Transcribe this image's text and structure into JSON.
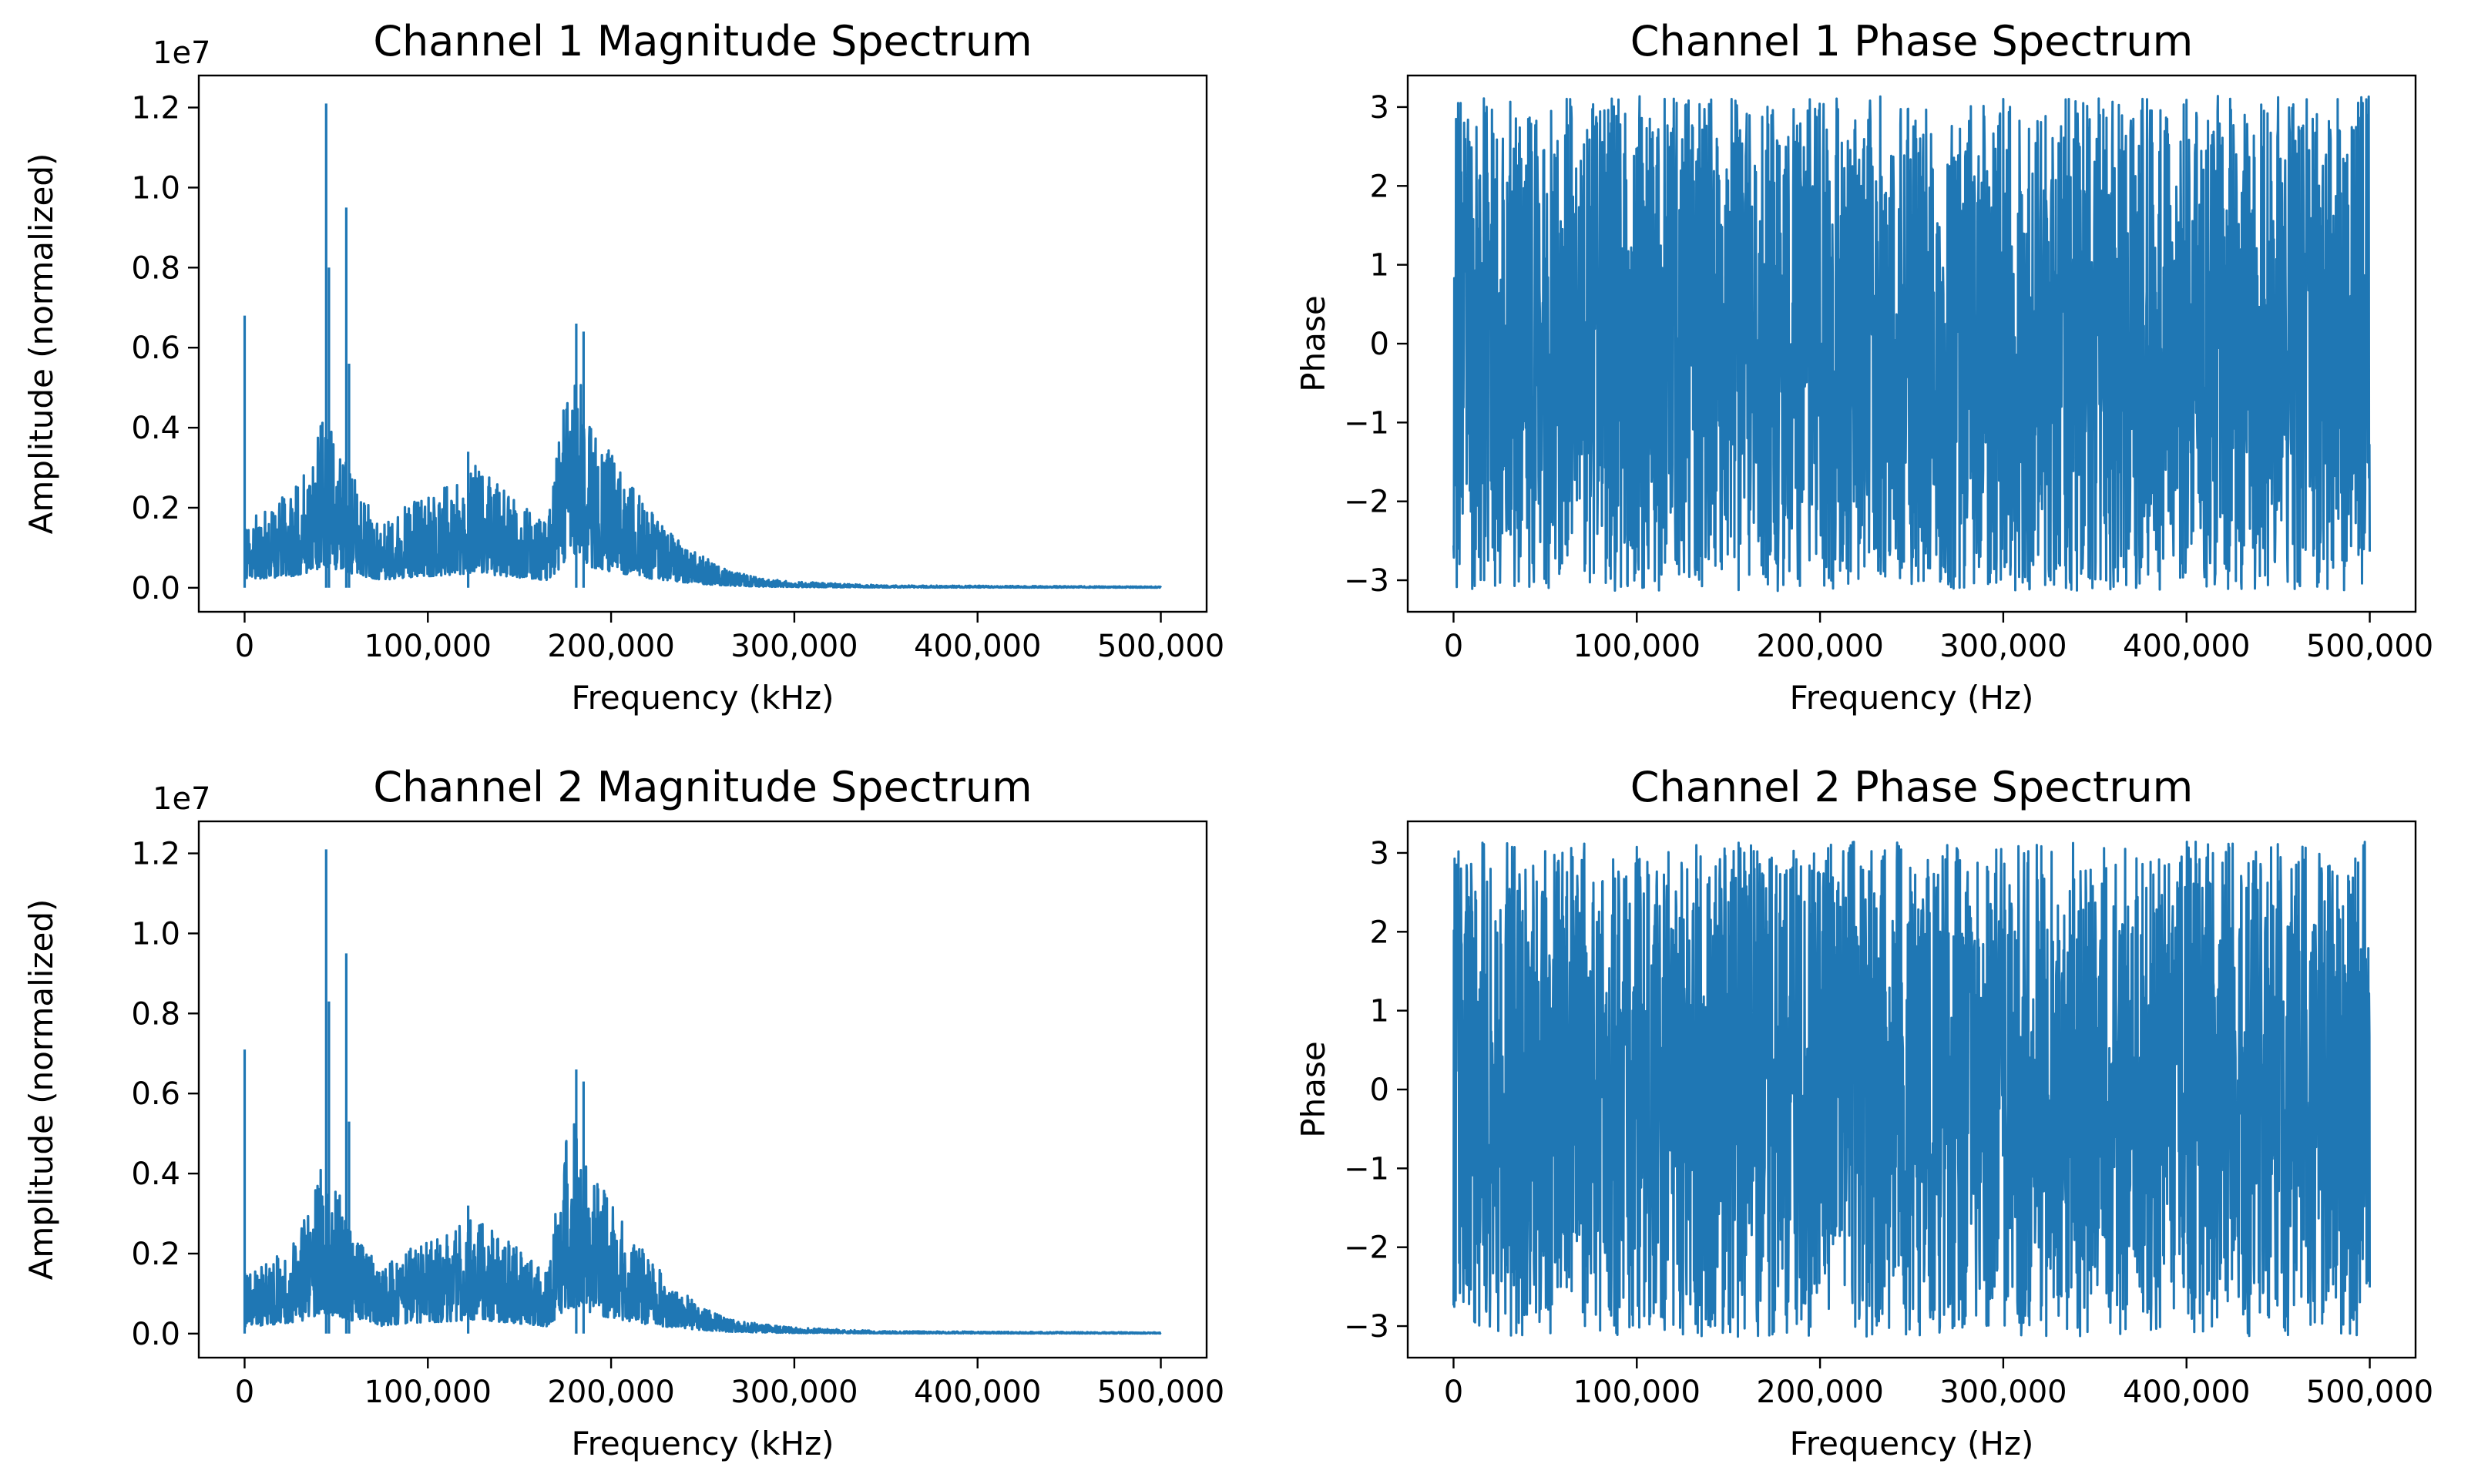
{
  "chart_data": [
    {
      "type": "line",
      "kind": "magnitude",
      "title": "Channel 1 Magnitude Spectrum",
      "xlabel": "Frequency (kHz)",
      "ylabel": "Amplitude (normalized)",
      "y_offset_label": "1e7",
      "xlim": [
        -25000,
        525000
      ],
      "ylim": [
        -600000,
        12800000
      ],
      "xticks": [
        0,
        100000,
        200000,
        300000,
        400000,
        500000
      ],
      "xtick_labels": [
        "0",
        "100,000",
        "200,000",
        "300,000",
        "400,000",
        "500,000"
      ],
      "yticks": [
        0,
        2000000,
        4000000,
        6000000,
        8000000,
        10000000,
        12000000
      ],
      "ytick_labels": [
        "0.0",
        "0.2",
        "0.4",
        "0.6",
        "0.8",
        "1.0",
        "1.2"
      ],
      "color": "#1f77b4",
      "seed": 11,
      "peaks": [
        {
          "x": 0,
          "y": 6800000
        },
        {
          "x": 44500,
          "y": 12100000
        },
        {
          "x": 46000,
          "y": 8000000
        },
        {
          "x": 55500,
          "y": 9500000
        },
        {
          "x": 57000,
          "y": 5600000
        },
        {
          "x": 181000,
          "y": 6600000
        },
        {
          "x": 185000,
          "y": 6400000
        },
        {
          "x": 122000,
          "y": 3400000
        }
      ],
      "envelope": {
        "x": [
          0,
          10000,
          30000,
          42000,
          50000,
          60000,
          75000,
          90000,
          110000,
          125000,
          145000,
          165000,
          178000,
          190000,
          200000,
          220000,
          240000,
          260000,
          280000,
          300000,
          350000,
          500000
        ],
        "y": [
          1800000,
          1900000,
          2600000,
          4200000,
          3800000,
          2800000,
          1600000,
          2200000,
          2600000,
          3100000,
          2300000,
          1600000,
          5800000,
          4200000,
          3400000,
          2000000,
          1100000,
          500000,
          250000,
          150000,
          60000,
          30000
        ]
      }
    },
    {
      "type": "line",
      "kind": "phase",
      "title": "Channel 1 Phase Spectrum",
      "xlabel": "Frequency (Hz)",
      "ylabel": "Phase",
      "xlim": [
        -25000,
        525000
      ],
      "ylim": [
        -3.4,
        3.4
      ],
      "xticks": [
        0,
        100000,
        200000,
        300000,
        400000,
        500000
      ],
      "xtick_labels": [
        "0",
        "100,000",
        "200,000",
        "300,000",
        "400,000",
        "500,000"
      ],
      "yticks": [
        -3,
        -2,
        -1,
        0,
        1,
        2,
        3
      ],
      "ytick_labels": [
        "−3",
        "−2",
        "−1",
        "0",
        "1",
        "2",
        "3"
      ],
      "color": "#1f77b4",
      "seed": 23,
      "range": [
        -3.14159,
        3.14159
      ]
    },
    {
      "type": "line",
      "kind": "magnitude",
      "title": "Channel 2 Magnitude Spectrum",
      "xlabel": "Frequency (kHz)",
      "ylabel": "Amplitude (normalized)",
      "y_offset_label": "1e7",
      "xlim": [
        -25000,
        525000
      ],
      "ylim": [
        -600000,
        12800000
      ],
      "xticks": [
        0,
        100000,
        200000,
        300000,
        400000,
        500000
      ],
      "xtick_labels": [
        "0",
        "100,000",
        "200,000",
        "300,000",
        "400,000",
        "500,000"
      ],
      "yticks": [
        0,
        2000000,
        4000000,
        6000000,
        8000000,
        10000000,
        12000000
      ],
      "ytick_labels": [
        "0.0",
        "0.2",
        "0.4",
        "0.6",
        "0.8",
        "1.0",
        "1.2"
      ],
      "color": "#1f77b4",
      "seed": 37,
      "peaks": [
        {
          "x": 0,
          "y": 7100000
        },
        {
          "x": 44500,
          "y": 12100000
        },
        {
          "x": 46000,
          "y": 8300000
        },
        {
          "x": 55500,
          "y": 9500000
        },
        {
          "x": 57000,
          "y": 5300000
        },
        {
          "x": 181000,
          "y": 6600000
        },
        {
          "x": 185000,
          "y": 6300000
        },
        {
          "x": 122000,
          "y": 3200000
        }
      ],
      "envelope": {
        "x": [
          0,
          10000,
          30000,
          42000,
          50000,
          60000,
          75000,
          90000,
          110000,
          125000,
          145000,
          165000,
          178000,
          190000,
          200000,
          220000,
          240000,
          260000,
          280000,
          300000,
          350000,
          500000
        ],
        "y": [
          1500000,
          1700000,
          2500000,
          4200000,
          3700000,
          2600000,
          1600000,
          2200000,
          2500000,
          2900000,
          2300000,
          1500000,
          5700000,
          4000000,
          3300000,
          1900000,
          1000000,
          450000,
          250000,
          150000,
          60000,
          30000
        ]
      }
    },
    {
      "type": "line",
      "kind": "phase",
      "title": "Channel 2 Phase Spectrum",
      "xlabel": "Frequency (Hz)",
      "ylabel": "Phase",
      "xlim": [
        -25000,
        525000
      ],
      "ylim": [
        -3.4,
        3.4
      ],
      "xticks": [
        0,
        100000,
        200000,
        300000,
        400000,
        500000
      ],
      "xtick_labels": [
        "0",
        "100,000",
        "200,000",
        "300,000",
        "400,000",
        "500,000"
      ],
      "yticks": [
        -3,
        -2,
        -1,
        0,
        1,
        2,
        3
      ],
      "ytick_labels": [
        "−3",
        "−2",
        "−1",
        "0",
        "1",
        "2",
        "3"
      ],
      "color": "#1f77b4",
      "seed": 53,
      "range": [
        -3.14159,
        3.14159
      ]
    }
  ]
}
